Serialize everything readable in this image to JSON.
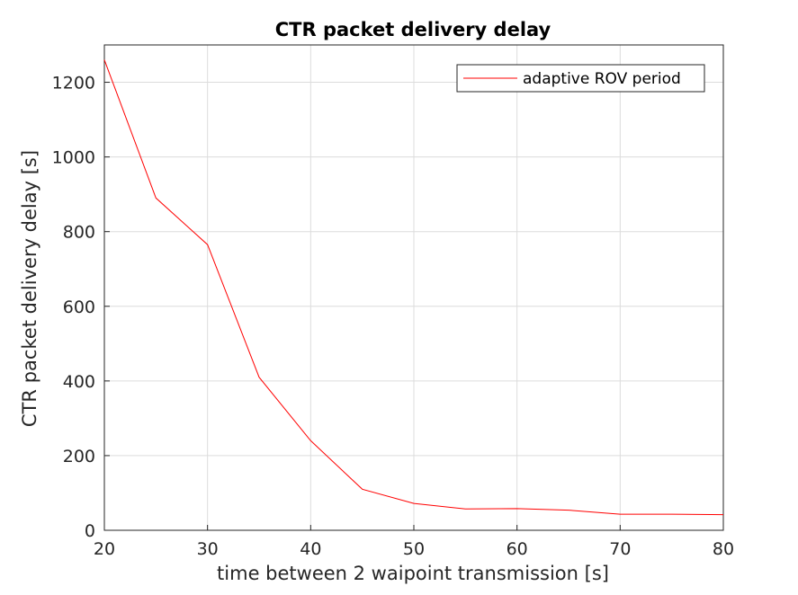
{
  "chart_data": {
    "type": "line",
    "title": "CTR packet delivery delay",
    "xlabel": "time between 2 waipoint transmission [s]",
    "ylabel": "CTR packet delivery delay [s]",
    "xlim": [
      20,
      80
    ],
    "ylim": [
      0,
      1300
    ],
    "xticks": [
      20,
      30,
      40,
      50,
      60,
      70,
      80
    ],
    "yticks": [
      0,
      200,
      400,
      600,
      800,
      1000,
      1200
    ],
    "grid": true,
    "legend_position": "top-right",
    "series": [
      {
        "name": "adaptive ROV period",
        "color": "#ff0000",
        "x": [
          20,
          25,
          30,
          35,
          40,
          45,
          50,
          55,
          60,
          65,
          70,
          75,
          80
        ],
        "y": [
          1260,
          890,
          765,
          410,
          240,
          110,
          72,
          57,
          58,
          54,
          43,
          43,
          42
        ]
      }
    ]
  }
}
